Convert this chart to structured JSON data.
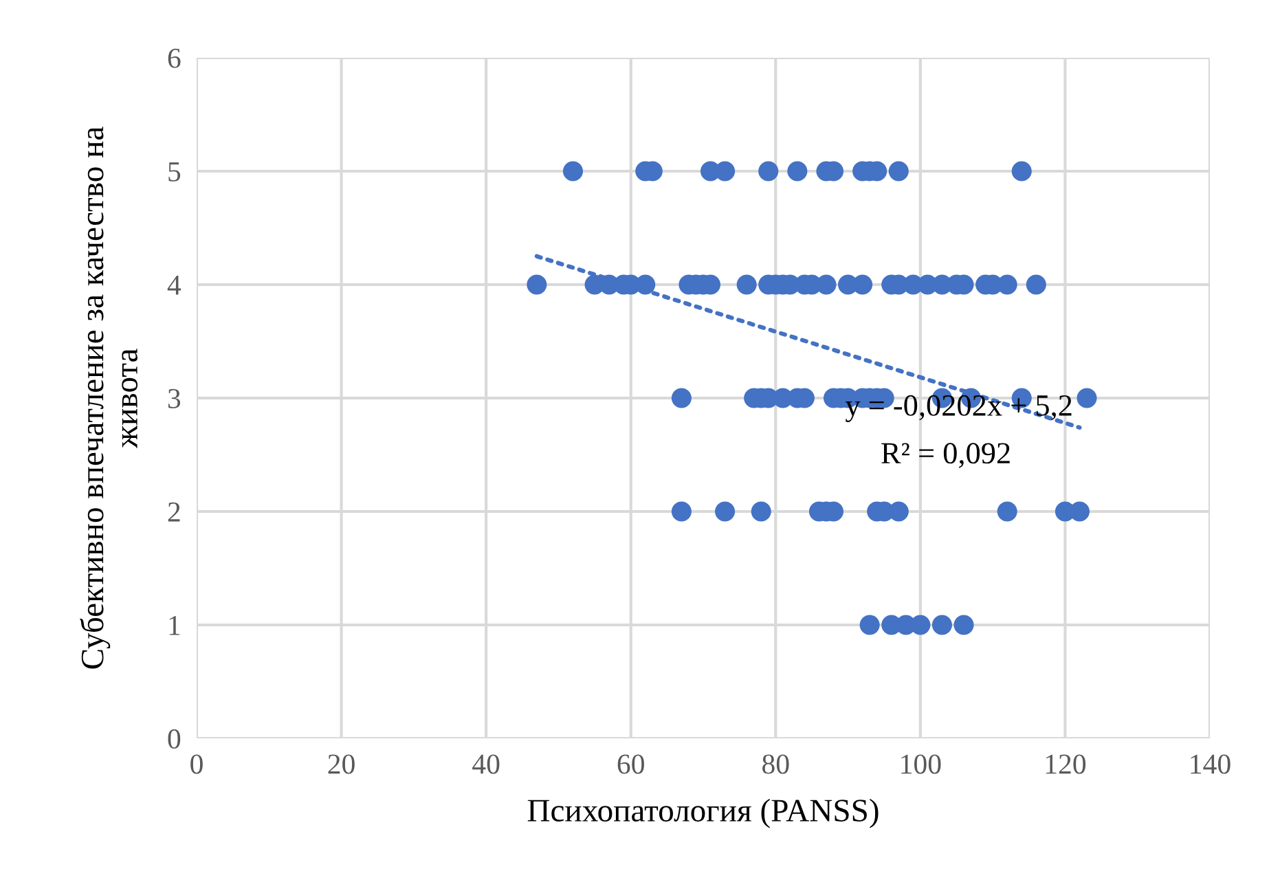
{
  "chart_data": {
    "type": "scatter",
    "xlabel": "Психопатология (PANSS)",
    "ylabel": "Субективно впечатление за качество на\nживота",
    "xlim": [
      0,
      140
    ],
    "xticks": [
      0,
      20,
      40,
      60,
      80,
      100,
      120,
      140
    ],
    "ylim": [
      0,
      6
    ],
    "yticks": [
      0,
      1,
      2,
      3,
      4,
      5,
      6
    ],
    "grid": true,
    "annotations": [
      "y = -0,0202x + 5,2",
      "R² = 0,092"
    ],
    "series": [
      {
        "marker": "circle",
        "color": "#4472c4",
        "x": [
          52,
          62,
          63,
          71,
          73,
          79,
          83,
          87,
          88,
          92,
          93,
          94,
          97,
          114,
          47,
          55,
          57,
          59,
          60,
          62,
          68,
          69,
          70,
          71,
          76,
          79,
          80,
          81,
          82,
          84,
          85,
          87,
          90,
          92,
          96,
          97,
          99,
          101,
          103,
          105,
          106,
          109,
          110,
          112,
          116,
          67,
          77,
          78,
          79,
          81,
          83,
          84,
          88,
          89,
          90,
          92,
          93,
          94,
          95,
          103,
          107,
          114,
          123,
          67,
          73,
          78,
          86,
          87,
          88,
          94,
          95,
          97,
          112,
          120,
          122,
          93,
          96,
          98,
          100,
          103,
          106
        ],
        "values": [
          5,
          5,
          5,
          5,
          5,
          5,
          5,
          5,
          5,
          5,
          5,
          5,
          5,
          5,
          4,
          4,
          4,
          4,
          4,
          4,
          4,
          4,
          4,
          4,
          4,
          4,
          4,
          4,
          4,
          4,
          4,
          4,
          4,
          4,
          4,
          4,
          4,
          4,
          4,
          4,
          4,
          4,
          4,
          4,
          4,
          3,
          3,
          3,
          3,
          3,
          3,
          3,
          3,
          3,
          3,
          3,
          3,
          3,
          3,
          3,
          3,
          3,
          3,
          2,
          2,
          2,
          2,
          2,
          2,
          2,
          2,
          2,
          2,
          2,
          2,
          1,
          1,
          1,
          1,
          1,
          1
        ]
      },
      {
        "type": "line",
        "marker": "none",
        "color": "#4472c4",
        "line_style": "dotted",
        "x": [
          47,
          122
        ],
        "values": [
          4.25,
          2.74
        ]
      }
    ]
  }
}
